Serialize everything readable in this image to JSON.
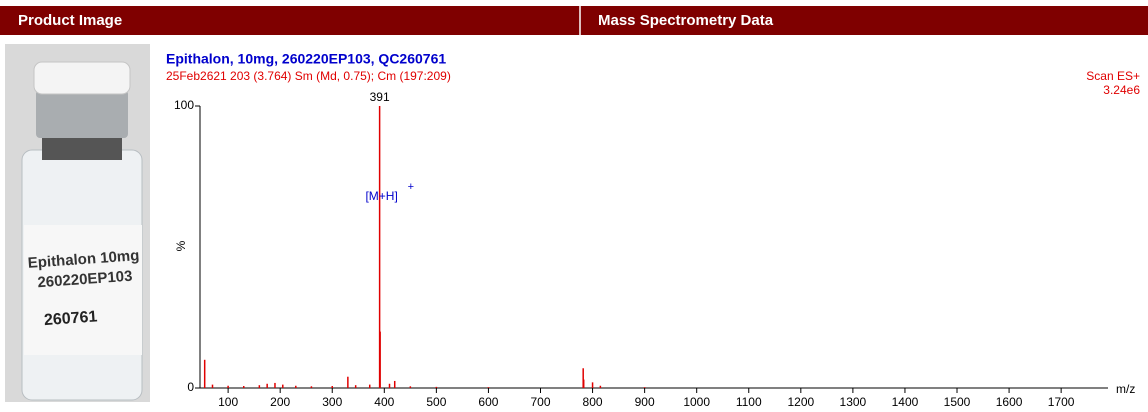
{
  "header": {
    "left": "Product Image",
    "right": "Mass Spectrometry Data"
  },
  "product_image": {
    "label_lines": [
      "Epithalon 10mg",
      "260220EP103",
      "260761"
    ]
  },
  "chart_data": {
    "type": "stem",
    "title": "Epithalon, 10mg, 260220EP103, QC260761",
    "subtitle": "25Feb2621 203 (3.764) Sm (Md, 0.75); Cm (197:209)",
    "scan_mode": "Scan ES+",
    "intensity": "3.24e6",
    "ylabel": "%",
    "xlabel": "m/z",
    "annotation": {
      "text": "[M+H]",
      "superscript": "+"
    },
    "color": "#e00000",
    "x": [
      55,
      70,
      100,
      130,
      160,
      175,
      190,
      205,
      230,
      260,
      300,
      330,
      345,
      372,
      391,
      392,
      410,
      420,
      450,
      500,
      600,
      782,
      783,
      800,
      815,
      900
    ],
    "values": [
      10,
      1.2,
      0.8,
      0.7,
      1,
      1.5,
      1.8,
      1.2,
      0.8,
      0.6,
      0.7,
      4,
      1,
      1.2,
      100,
      20,
      1.5,
      2.5,
      0.6,
      0.4,
      0.3,
      7,
      3,
      2,
      0.8,
      0.3
    ],
    "xlim": [
      46,
      1790
    ],
    "ylim": [
      0,
      100
    ],
    "xticks": [
      100,
      200,
      300,
      400,
      500,
      600,
      700,
      800,
      900,
      1000,
      1100,
      1200,
      1300,
      1400,
      1500,
      1600,
      1700
    ],
    "yticks": [
      0,
      100
    ]
  }
}
